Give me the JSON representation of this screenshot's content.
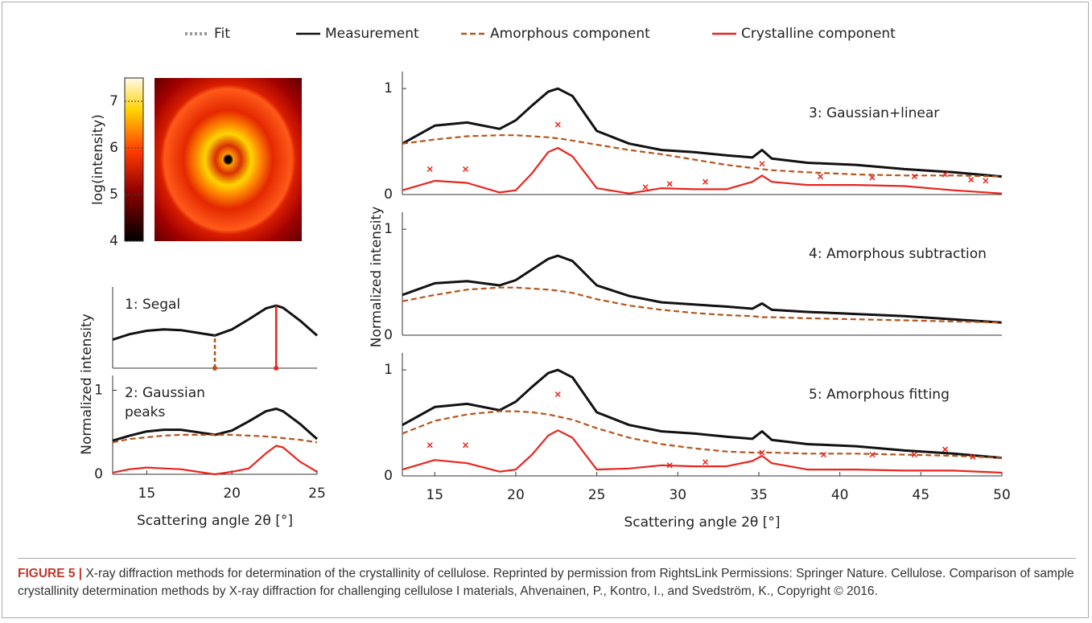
{
  "legend": {
    "items": [
      {
        "name": "Fit",
        "color": "#9a9a9a",
        "style": "dotted"
      },
      {
        "name": "Measurement",
        "color": "#111111",
        "style": "solid"
      },
      {
        "name": "Amorphous component",
        "color": "#b5541b",
        "style": "dashed"
      },
      {
        "name": "Crystalline component",
        "color": "#e8251e",
        "style": "solid"
      }
    ]
  },
  "chart_data": [
    {
      "type": "colorbar",
      "ylabel": "log(intensity)",
      "ylim": [
        4,
        7.5
      ],
      "yticks": [
        4,
        5,
        6,
        7
      ]
    },
    {
      "type": "line",
      "title": "1: Segal",
      "xlim": [
        13,
        25
      ],
      "ylim": [
        0,
        1.1
      ],
      "x": [
        13,
        14,
        15,
        16,
        17,
        18,
        19,
        20,
        21,
        22,
        22.6,
        23,
        24,
        25
      ],
      "series": [
        {
          "name": "Measurement",
          "color": "#111111",
          "values": [
            0.42,
            0.5,
            0.55,
            0.57,
            0.56,
            0.52,
            0.48,
            0.57,
            0.72,
            0.88,
            0.92,
            0.89,
            0.7,
            0.48
          ]
        }
      ],
      "vlines": [
        {
          "x": 19,
          "top": 0.48,
          "color": "#b5541b",
          "dashed": true
        },
        {
          "x": 22.6,
          "top": 0.92,
          "color": "#e8251e",
          "dashed": false
        }
      ]
    },
    {
      "type": "line",
      "title": [
        "2: Gaussian",
        "peaks"
      ],
      "ylabel": "Normalized intensity",
      "xlabel": "Scattering angle 2θ [°]",
      "xlim": [
        13,
        25
      ],
      "ylim": [
        0,
        1.1
      ],
      "xticks": [
        15,
        20,
        25
      ],
      "yticks": [
        0,
        1
      ],
      "x": [
        13,
        14,
        15,
        16,
        17,
        18,
        19,
        20,
        21,
        22,
        22.6,
        23,
        24,
        25
      ],
      "series": [
        {
          "name": "Measurement",
          "color": "#111111",
          "values": [
            0.4,
            0.46,
            0.51,
            0.53,
            0.53,
            0.5,
            0.47,
            0.52,
            0.63,
            0.75,
            0.78,
            0.75,
            0.6,
            0.42
          ]
        },
        {
          "name": "Amorphous component",
          "color": "#b5541b",
          "dashed": true,
          "values": [
            0.38,
            0.42,
            0.44,
            0.46,
            0.47,
            0.47,
            0.47,
            0.47,
            0.46,
            0.45,
            0.44,
            0.43,
            0.41,
            0.38
          ]
        },
        {
          "name": "Crystalline component",
          "color": "#e8251e",
          "values": [
            0.02,
            0.06,
            0.08,
            0.07,
            0.06,
            0.03,
            0.0,
            0.03,
            0.07,
            0.25,
            0.34,
            0.32,
            0.15,
            0.03
          ]
        }
      ]
    },
    {
      "type": "line",
      "title": "3: Gaussian+linear",
      "xlim": [
        13,
        50
      ],
      "ylim": [
        0,
        1.1
      ],
      "yticks": [
        0,
        1
      ],
      "x": [
        13,
        15,
        17,
        19,
        20,
        21,
        22,
        22.6,
        23.5,
        25,
        27,
        29,
        31,
        33,
        34.6,
        35.2,
        35.8,
        38,
        41,
        44,
        47,
        50
      ],
      "series": [
        {
          "name": "Measurement",
          "color": "#111111",
          "values": [
            0.48,
            0.65,
            0.68,
            0.62,
            0.7,
            0.84,
            0.97,
            1.0,
            0.93,
            0.6,
            0.48,
            0.42,
            0.4,
            0.37,
            0.35,
            0.42,
            0.34,
            0.3,
            0.28,
            0.24,
            0.21,
            0.17
          ]
        },
        {
          "name": "Amorphous component",
          "color": "#b5541b",
          "dashed": true,
          "values": [
            0.48,
            0.52,
            0.55,
            0.56,
            0.56,
            0.55,
            0.54,
            0.53,
            0.51,
            0.47,
            0.42,
            0.38,
            0.33,
            0.28,
            0.25,
            0.24,
            0.23,
            0.21,
            0.19,
            0.18,
            0.18,
            0.17
          ]
        },
        {
          "name": "Crystalline component",
          "color": "#e8251e",
          "values": [
            0.04,
            0.13,
            0.11,
            0.02,
            0.04,
            0.2,
            0.4,
            0.44,
            0.36,
            0.06,
            0.01,
            0.06,
            0.05,
            0.05,
            0.12,
            0.18,
            0.12,
            0.09,
            0.09,
            0.08,
            0.04,
            0.01
          ]
        }
      ],
      "markers": {
        "color": "#e8251e",
        "x": [
          14.7,
          16.9,
          22.6,
          28,
          29.5,
          31.7,
          35.2,
          38.8,
          42,
          44.6,
          46.5,
          48.1,
          49
        ],
        "values": [
          0.24,
          0.24,
          0.66,
          0.07,
          0.1,
          0.12,
          0.29,
          0.17,
          0.16,
          0.17,
          0.19,
          0.14,
          0.13
        ]
      }
    },
    {
      "type": "line",
      "title": "4: Amorphous subtraction",
      "ylabel": "Normalized intensity",
      "xlim": [
        13,
        50
      ],
      "ylim": [
        0,
        1.1
      ],
      "yticks": [
        0,
        1
      ],
      "x": [
        13,
        15,
        17,
        19,
        20,
        21,
        22,
        22.6,
        23.5,
        25,
        27,
        29,
        31,
        33,
        34.6,
        35.2,
        35.8,
        38,
        41,
        44,
        47,
        50
      ],
      "series": [
        {
          "name": "Measurement",
          "color": "#111111",
          "values": [
            0.38,
            0.49,
            0.51,
            0.47,
            0.52,
            0.62,
            0.72,
            0.75,
            0.7,
            0.47,
            0.37,
            0.31,
            0.29,
            0.27,
            0.25,
            0.3,
            0.24,
            0.22,
            0.2,
            0.18,
            0.15,
            0.12
          ]
        },
        {
          "name": "Amorphous component",
          "color": "#b5541b",
          "dashed": true,
          "values": [
            0.32,
            0.38,
            0.43,
            0.45,
            0.45,
            0.44,
            0.43,
            0.42,
            0.4,
            0.34,
            0.28,
            0.24,
            0.21,
            0.19,
            0.18,
            0.17,
            0.17,
            0.16,
            0.15,
            0.14,
            0.13,
            0.12
          ]
        }
      ]
    },
    {
      "type": "line",
      "title": "5: Amorphous fitting",
      "xlabel": "Scattering angle 2θ [°]",
      "xlim": [
        13,
        50
      ],
      "ylim": [
        0,
        1.1
      ],
      "xticks": [
        15,
        20,
        25,
        30,
        35,
        40,
        45,
        50
      ],
      "yticks": [
        0,
        1
      ],
      "x": [
        13,
        15,
        17,
        19,
        20,
        21,
        22,
        22.6,
        23.5,
        25,
        27,
        29,
        31,
        33,
        34.6,
        35.2,
        35.8,
        38,
        41,
        44,
        47,
        50
      ],
      "series": [
        {
          "name": "Measurement",
          "color": "#111111",
          "values": [
            0.48,
            0.65,
            0.68,
            0.62,
            0.7,
            0.84,
            0.97,
            1.0,
            0.93,
            0.6,
            0.48,
            0.42,
            0.4,
            0.37,
            0.35,
            0.42,
            0.34,
            0.3,
            0.28,
            0.24,
            0.21,
            0.17
          ]
        },
        {
          "name": "Amorphous component",
          "color": "#b5541b",
          "dashed": true,
          "values": [
            0.4,
            0.52,
            0.58,
            0.61,
            0.61,
            0.6,
            0.58,
            0.56,
            0.53,
            0.45,
            0.36,
            0.3,
            0.26,
            0.23,
            0.22,
            0.22,
            0.22,
            0.21,
            0.21,
            0.2,
            0.19,
            0.17
          ]
        },
        {
          "name": "Crystalline component",
          "color": "#e8251e",
          "values": [
            0.06,
            0.15,
            0.12,
            0.04,
            0.06,
            0.2,
            0.38,
            0.43,
            0.36,
            0.06,
            0.07,
            0.1,
            0.09,
            0.09,
            0.14,
            0.19,
            0.12,
            0.06,
            0.06,
            0.05,
            0.05,
            0.03
          ]
        }
      ],
      "markers": {
        "color": "#e8251e",
        "x": [
          14.7,
          16.9,
          22.6,
          29.5,
          31.7,
          35.2,
          39,
          42,
          44.6,
          46.5,
          48.2
        ],
        "values": [
          0.29,
          0.29,
          0.77,
          0.1,
          0.13,
          0.22,
          0.2,
          0.2,
          0.2,
          0.25,
          0.18
        ]
      }
    }
  ],
  "caption": {
    "label": "FIGURE 5 |",
    "text": "X-ray diffraction methods for determination of the crystallinity of cellulose. Reprinted by permission from RightsLink Permissions: Springer Nature. Cellulose. Comparison of sample crystallinity determination methods by X-ray diffraction for challenging cellulose I materials, Ahvenainen, P., Kontro, I., and Svedström, K., Copyright © 2016."
  }
}
